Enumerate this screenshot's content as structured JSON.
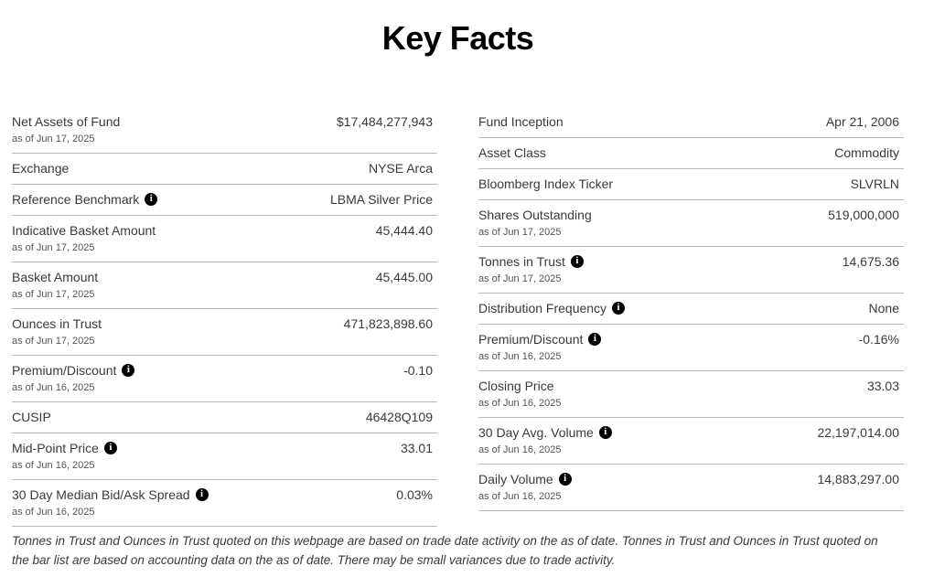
{
  "page": {
    "title": "Key Facts",
    "footnote": "Tonnes in Trust and Ounces in Trust quoted on this webpage are based on trade date activity on the as of date. Tonnes in Trust and Ounces in Trust quoted on the bar list are based on accounting data on the as of date. There may be small variances due to trade activity."
  },
  "icons": {
    "info_glyph": "i"
  },
  "colors": {
    "text": "#3a3a3a",
    "as_of_text": "#555555",
    "divider": "#b9b9b9",
    "title": "#000000",
    "info_icon_bg": "#000000",
    "info_icon_fg": "#ffffff"
  },
  "columns": {
    "left": [
      {
        "label": "Net Assets of Fund",
        "as_of": "as of Jun 17, 2025",
        "value": "$17,484,277,943",
        "info": false
      },
      {
        "label": "Exchange",
        "as_of": "",
        "value": "NYSE Arca",
        "info": false
      },
      {
        "label": "Reference Benchmark",
        "as_of": "",
        "value": "LBMA Silver Price",
        "info": true
      },
      {
        "label": "Indicative Basket Amount",
        "as_of": "as of Jun 17, 2025",
        "value": "45,444.40",
        "info": false
      },
      {
        "label": "Basket Amount",
        "as_of": "as of Jun 17, 2025",
        "value": "45,445.00",
        "info": false
      },
      {
        "label": "Ounces in Trust",
        "as_of": "as of Jun 17, 2025",
        "value": "471,823,898.60",
        "info": false
      },
      {
        "label": "Premium/Discount",
        "as_of": "as of Jun 16, 2025",
        "value": "-0.10",
        "info": true
      },
      {
        "label": "CUSIP",
        "as_of": "",
        "value": "46428Q109",
        "info": false
      },
      {
        "label": "Mid-Point Price",
        "as_of": "as of Jun 16, 2025",
        "value": "33.01",
        "info": true
      },
      {
        "label": "30 Day Median Bid/Ask Spread",
        "as_of": "as of Jun 16, 2025",
        "value": "0.03%",
        "info": true
      }
    ],
    "right": [
      {
        "label": "Fund Inception",
        "as_of": "",
        "value": "Apr 21, 2006",
        "info": false
      },
      {
        "label": "Asset Class",
        "as_of": "",
        "value": "Commodity",
        "info": false
      },
      {
        "label": "Bloomberg Index Ticker",
        "as_of": "",
        "value": "SLVRLN",
        "info": false
      },
      {
        "label": "Shares Outstanding",
        "as_of": "as of Jun 17, 2025",
        "value": "519,000,000",
        "info": false
      },
      {
        "label": "Tonnes in Trust",
        "as_of": "as of Jun 17, 2025",
        "value": "14,675.36",
        "info": true
      },
      {
        "label": "Distribution Frequency",
        "as_of": "",
        "value": "None",
        "info": true
      },
      {
        "label": "Premium/Discount",
        "as_of": "as of Jun 16, 2025",
        "value": "-0.16%",
        "info": true
      },
      {
        "label": "Closing Price",
        "as_of": "as of Jun 16, 2025",
        "value": "33.03",
        "info": false
      },
      {
        "label": "30 Day Avg. Volume",
        "as_of": "as of Jun 16, 2025",
        "value": "22,197,014.00",
        "info": true
      },
      {
        "label": "Daily Volume",
        "as_of": "as of Jun 16, 2025",
        "value": "14,883,297.00",
        "info": true
      }
    ]
  }
}
